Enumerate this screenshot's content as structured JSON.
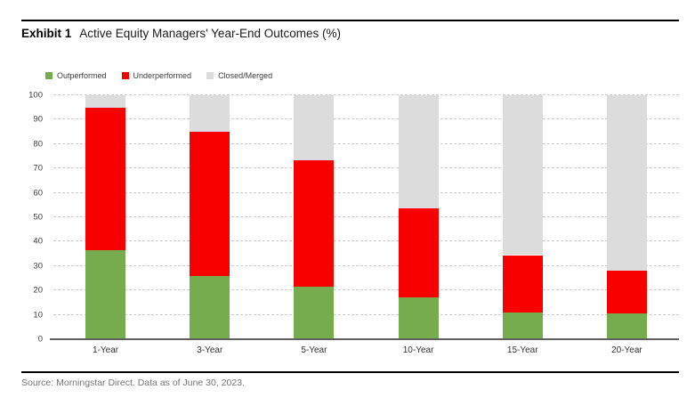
{
  "header": {
    "exhibit_label": "Exhibit 1",
    "title": "Active Equity Managers' Year-End Outcomes (%)"
  },
  "footer": {
    "source": "Source: Morningstar Direct. Data as of June 30, 2023."
  },
  "colors": {
    "outperformed": "#76AB4E",
    "underperformed": "#F80000",
    "closed_merged": "#DCDCDC",
    "gridline": "#CCCCCC",
    "axis": "#5F5F5F",
    "source_text": "#757575"
  },
  "chart_data": {
    "type": "bar",
    "stacked": true,
    "title": "Active Equity Managers' Year-End Outcomes (%)",
    "categories": [
      "1-Year",
      "3-Year",
      "5-Year",
      "10-Year",
      "15-Year",
      "20-Year"
    ],
    "series": [
      {
        "name": "Outperformed",
        "color": "#76AB4E",
        "values": [
          36.5,
          26.0,
          21.5,
          17.0,
          11.0,
          10.5
        ]
      },
      {
        "name": "Underperformed",
        "color": "#F80000",
        "values": [
          58.5,
          59.0,
          52.0,
          36.5,
          23.5,
          17.5
        ]
      },
      {
        "name": "Closed/Merged",
        "color": "#DCDCDC",
        "values": [
          5.0,
          15.0,
          26.5,
          46.5,
          65.5,
          72.0
        ]
      }
    ],
    "ylim": [
      0,
      100
    ],
    "ytick_interval": 10,
    "grid": "horizontal-dashed",
    "legend_position": "top-left"
  }
}
